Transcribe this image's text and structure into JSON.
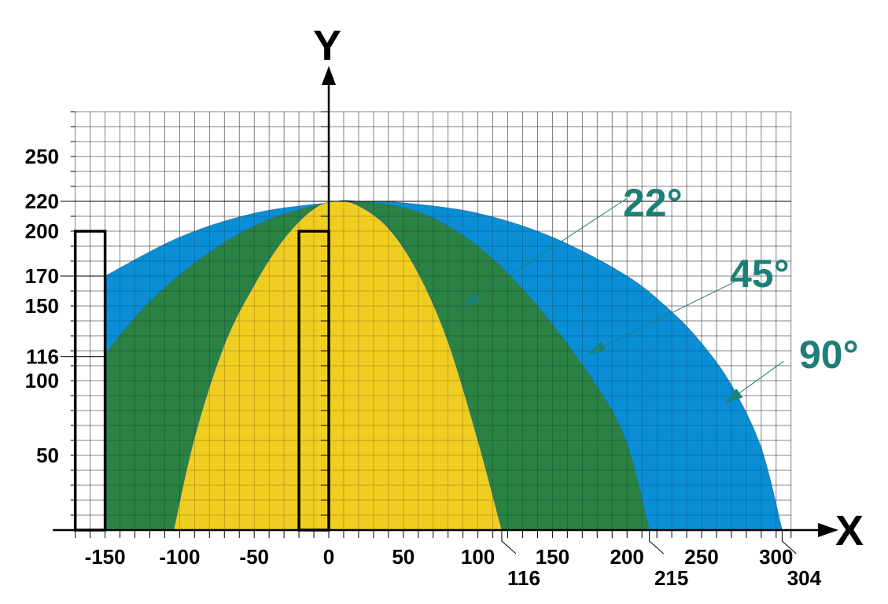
{
  "chart_data": {
    "type": "area",
    "title": "",
    "xlabel": "X",
    "ylabel": "Y",
    "xlim": [
      -180,
      320
    ],
    "ylim": [
      0,
      280
    ],
    "grid": true,
    "x_ticks": [
      -150,
      -100,
      -50,
      0,
      50,
      100,
      150,
      200,
      250,
      300
    ],
    "y_ticks": [
      50,
      100,
      116,
      150,
      170,
      200,
      220,
      250
    ],
    "x_callouts": [
      116,
      215,
      304
    ],
    "guide_lines": {
      "y220": 220,
      "y116": 116,
      "y170": 170
    },
    "series": [
      {
        "name": "90°",
        "color": "#0a8fd6",
        "points": [
          [
            -150,
            170
          ],
          [
            -100,
            196
          ],
          [
            -50,
            212
          ],
          [
            0,
            219
          ],
          [
            25,
            220
          ],
          [
            50,
            219
          ],
          [
            100,
            212
          ],
          [
            150,
            196
          ],
          [
            200,
            170
          ],
          [
            230,
            146
          ],
          [
            250,
            125
          ],
          [
            270,
            97
          ],
          [
            290,
            55
          ],
          [
            304,
            0
          ]
        ]
      },
      {
        "name": "45°",
        "color": "#2a8244",
        "points": [
          [
            -150,
            118
          ],
          [
            -120,
            153
          ],
          [
            -80,
            186
          ],
          [
            -40,
            208
          ],
          [
            0,
            219
          ],
          [
            20,
            220
          ],
          [
            60,
            213
          ],
          [
            100,
            190
          ],
          [
            140,
            150
          ],
          [
            180,
            96
          ],
          [
            200,
            58
          ],
          [
            215,
            0
          ]
        ]
      },
      {
        "name": "22°",
        "color": "#f0cd21",
        "points": [
          [
            -104,
            0
          ],
          [
            -90,
            62
          ],
          [
            -70,
            124
          ],
          [
            -50,
            164
          ],
          [
            -30,
            195
          ],
          [
            -10,
            215
          ],
          [
            5,
            220
          ],
          [
            20,
            217
          ],
          [
            40,
            202
          ],
          [
            60,
            172
          ],
          [
            80,
            126
          ],
          [
            100,
            60
          ],
          [
            116,
            0
          ]
        ]
      }
    ],
    "rectangles": [
      {
        "x0": -170,
        "x1": -150,
        "y0": 0,
        "y1": 200
      },
      {
        "x0": -20,
        "x1": 0,
        "y0": 0,
        "y1": 200
      }
    ],
    "annotations": [
      {
        "label": "22°",
        "color": "#1e7f78"
      },
      {
        "label": "45°",
        "color": "#1e7f78"
      },
      {
        "label": "90°",
        "color": "#1e7f78"
      }
    ]
  }
}
